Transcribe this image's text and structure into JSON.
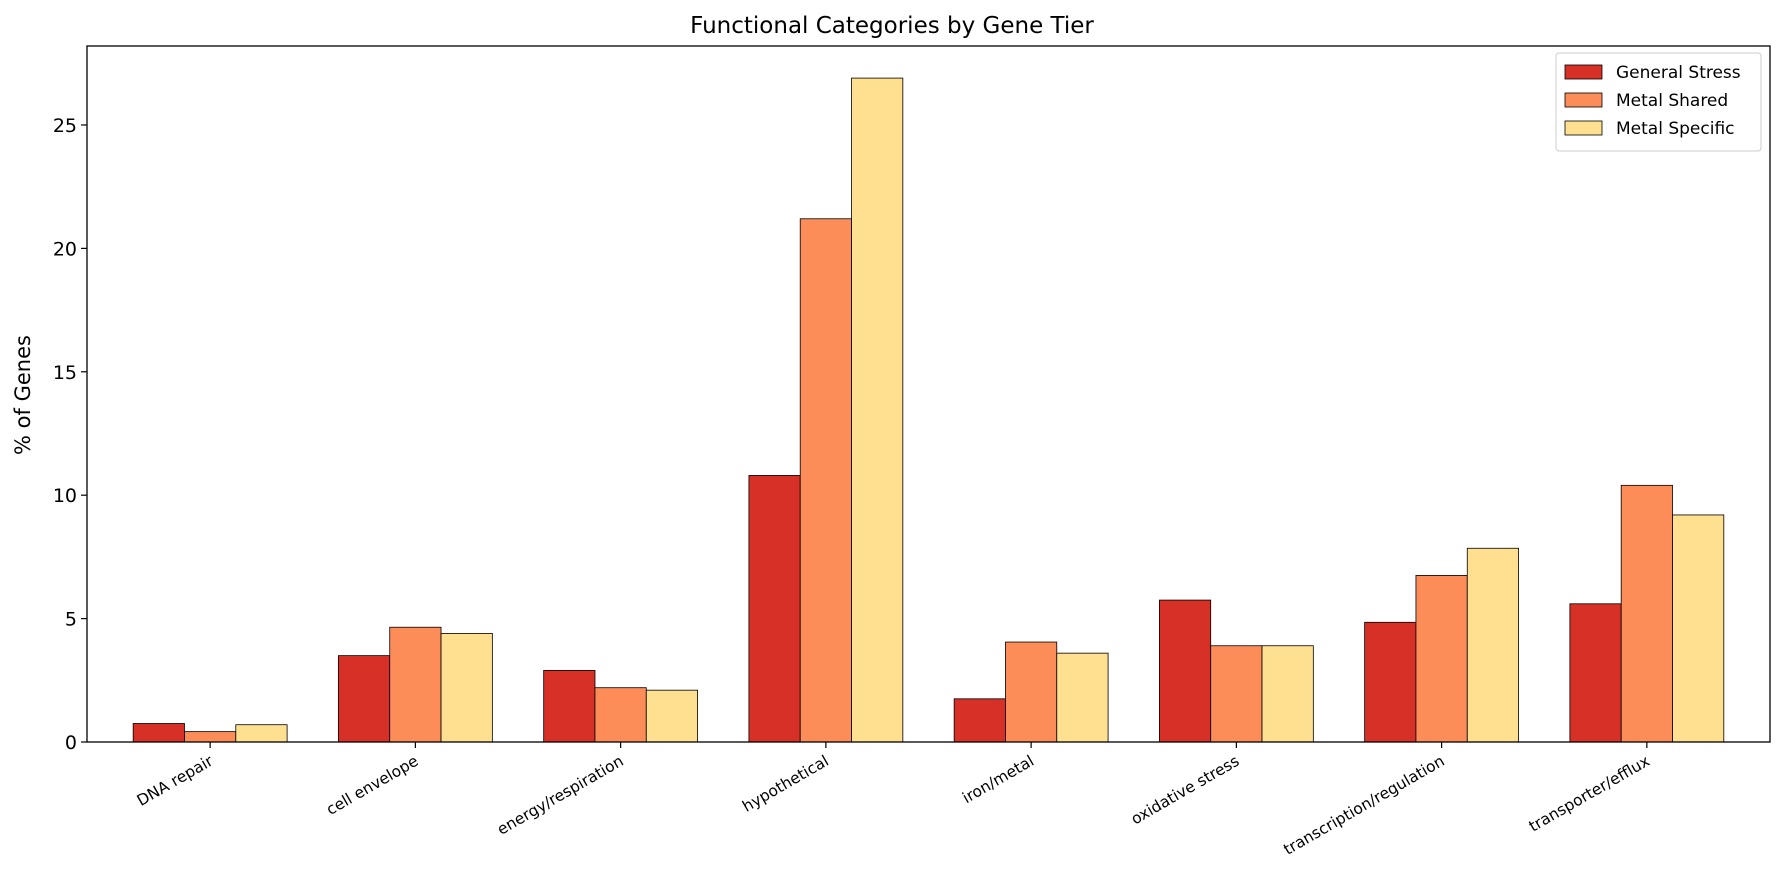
{
  "chart_data": {
    "type": "bar",
    "title": "Functional Categories by Gene Tier",
    "xlabel": "",
    "ylabel": "% of Genes",
    "ylim": [
      0,
      28.2
    ],
    "yticks": [
      0,
      5,
      10,
      15,
      20,
      25
    ],
    "ytick_labels": [
      "0",
      "5",
      "10",
      "15",
      "20",
      "25"
    ],
    "grid": false,
    "legend_position": "top-right",
    "categories": [
      "DNA repair",
      "cell envelope",
      "energy/respiration",
      "hypothetical",
      "iron/metal",
      "oxidative stress",
      "transcription/regulation",
      "transporter/efflux"
    ],
    "series": [
      {
        "name": "General Stress",
        "color": "#d73027",
        "values": [
          0.75,
          3.5,
          2.9,
          10.8,
          1.75,
          5.75,
          4.85,
          5.6
        ]
      },
      {
        "name": "Metal Shared",
        "color": "#fc8d59",
        "values": [
          0.42,
          4.65,
          2.2,
          21.2,
          4.05,
          3.9,
          6.75,
          10.4
        ]
      },
      {
        "name": "Metal Specific",
        "color": "#fee090",
        "values": [
          0.7,
          4.4,
          2.1,
          26.9,
          3.6,
          3.9,
          7.85,
          9.2
        ]
      }
    ]
  }
}
